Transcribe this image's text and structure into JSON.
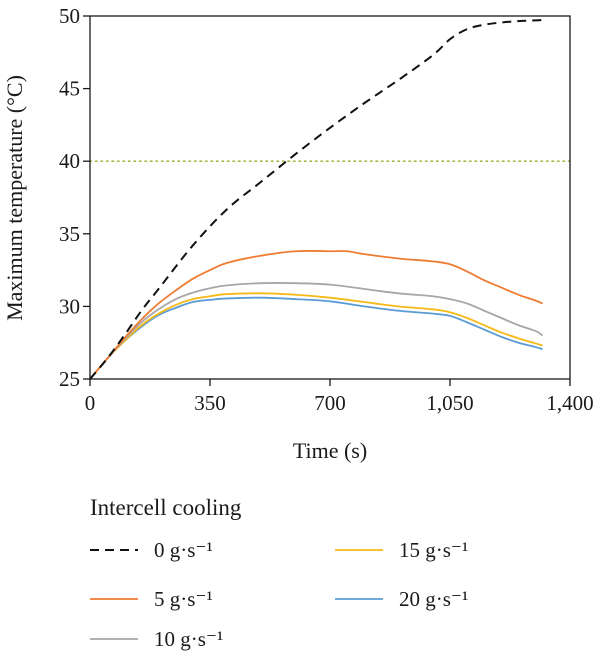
{
  "chart_data": {
    "type": "line",
    "xlabel": "Time (s)",
    "ylabel": "Maximum temperature (°C)",
    "xlim": [
      0,
      1400
    ],
    "ylim": [
      25,
      50
    ],
    "x_ticks": [
      0,
      350,
      700,
      1050,
      1400
    ],
    "x_tick_labels": [
      "0",
      "350",
      "700",
      "1,050",
      "1,400"
    ],
    "y_ticks": [
      25,
      30,
      35,
      40,
      45,
      50
    ],
    "y_tick_labels": [
      "25",
      "30",
      "35",
      "40",
      "45",
      "50"
    ],
    "grid": false,
    "reference_line": {
      "y": 40,
      "color": "#a8b84a",
      "style": "dotted"
    },
    "legend_title": "Intercell cooling",
    "legend_position": "below",
    "series": [
      {
        "name": "0 g·s⁻¹",
        "color": "#111111",
        "style": "dashed",
        "x": [
          0,
          50,
          100,
          150,
          200,
          300,
          400,
          500,
          600,
          700,
          800,
          900,
          1000,
          1050,
          1100,
          1150,
          1200,
          1250,
          1300,
          1320
        ],
        "y": [
          25,
          26.4,
          28,
          29.7,
          31.2,
          34.2,
          36.7,
          38.6,
          40.5,
          42.3,
          44.0,
          45.6,
          47.3,
          48.4,
          49.1,
          49.4,
          49.55,
          49.65,
          49.7,
          49.72
        ]
      },
      {
        "name": "5 g·s⁻¹",
        "color": "#ee7d33",
        "style": "solid",
        "x": [
          0,
          50,
          100,
          150,
          200,
          250,
          300,
          350,
          400,
          500,
          600,
          700,
          750,
          800,
          900,
          1000,
          1050,
          1100,
          1150,
          1200,
          1250,
          1300,
          1320
        ],
        "y": [
          25,
          26.4,
          27.8,
          29.1,
          30.2,
          31.1,
          31.9,
          32.5,
          33.0,
          33.5,
          33.8,
          33.8,
          33.8,
          33.6,
          33.3,
          33.1,
          32.9,
          32.4,
          31.8,
          31.3,
          30.8,
          30.4,
          30.2
        ]
      },
      {
        "name": "10 g·s⁻¹",
        "color": "#a7a7a7",
        "style": "solid",
        "x": [
          0,
          50,
          100,
          150,
          200,
          250,
          300,
          350,
          400,
          500,
          600,
          700,
          800,
          900,
          1000,
          1050,
          1100,
          1150,
          1200,
          1250,
          1300,
          1320
        ],
        "y": [
          25,
          26.4,
          27.7,
          28.9,
          29.8,
          30.5,
          30.95,
          31.25,
          31.45,
          31.6,
          31.6,
          31.5,
          31.2,
          30.9,
          30.7,
          30.5,
          30.2,
          29.7,
          29.2,
          28.7,
          28.3,
          28.0
        ]
      },
      {
        "name": "15 g·s⁻¹",
        "color": "#f5b917",
        "style": "solid",
        "x": [
          0,
          50,
          100,
          150,
          200,
          250,
          300,
          350,
          400,
          500,
          600,
          700,
          800,
          900,
          1000,
          1050,
          1100,
          1150,
          1200,
          1250,
          1300,
          1320
        ],
        "y": [
          25,
          26.4,
          27.6,
          28.7,
          29.5,
          30.1,
          30.5,
          30.7,
          30.85,
          30.9,
          30.8,
          30.6,
          30.3,
          30.0,
          29.8,
          29.6,
          29.2,
          28.7,
          28.2,
          27.8,
          27.45,
          27.3
        ]
      },
      {
        "name": "20 g·s⁻¹",
        "color": "#5b9bd5",
        "style": "solid",
        "x": [
          0,
          50,
          100,
          150,
          200,
          250,
          300,
          350,
          400,
          500,
          600,
          700,
          800,
          900,
          1000,
          1050,
          1100,
          1150,
          1200,
          1250,
          1300,
          1320
        ],
        "y": [
          25,
          26.4,
          27.6,
          28.6,
          29.4,
          29.9,
          30.3,
          30.45,
          30.55,
          30.6,
          30.5,
          30.35,
          30.0,
          29.7,
          29.5,
          29.35,
          28.9,
          28.4,
          27.9,
          27.5,
          27.2,
          27.05
        ]
      }
    ]
  }
}
